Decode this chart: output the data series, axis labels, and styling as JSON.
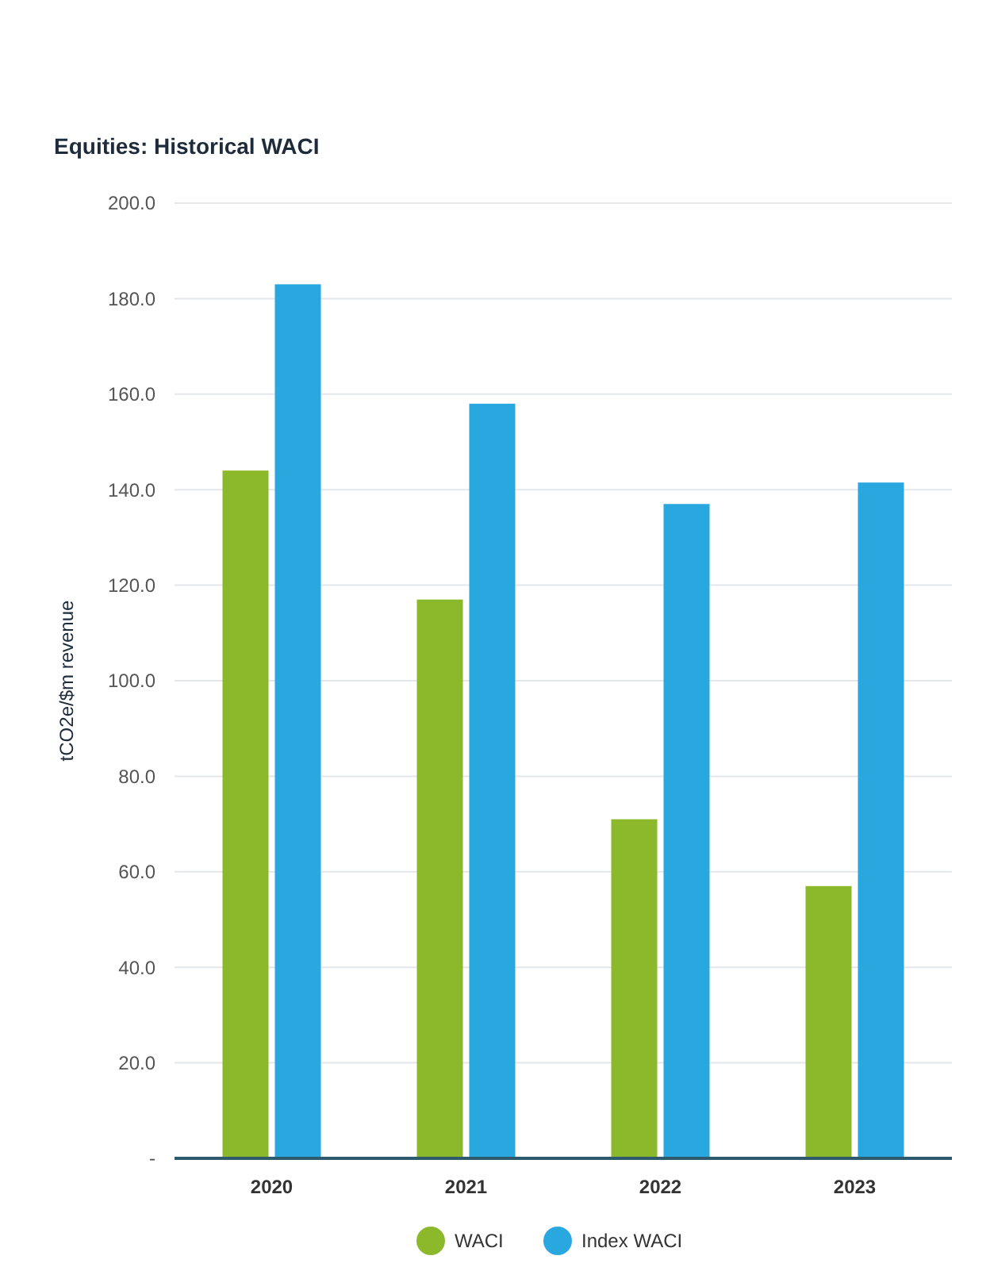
{
  "chart_data": {
    "type": "bar",
    "title": "Equities: Historical WACI",
    "ylabel": "tCO2e/$m revenue",
    "categories": [
      "2020",
      "2021",
      "2022",
      "2023"
    ],
    "series": [
      {
        "name": "WACI",
        "color": "#8cb82b",
        "values": [
          144,
          117,
          71,
          57
        ]
      },
      {
        "name": "Index WACI",
        "color": "#29a8e0",
        "values": [
          183,
          158,
          137,
          141.5
        ]
      }
    ],
    "ylim": [
      0,
      200
    ],
    "yticks": [
      {
        "value": 0,
        "label": "-"
      },
      {
        "value": 20,
        "label": "20.0"
      },
      {
        "value": 40,
        "label": "40.0"
      },
      {
        "value": 60,
        "label": "60.0"
      },
      {
        "value": 80,
        "label": "80.0"
      },
      {
        "value": 100,
        "label": "100.0"
      },
      {
        "value": 120,
        "label": "120.0"
      },
      {
        "value": 140,
        "label": "140.0"
      },
      {
        "value": 160,
        "label": "160.0"
      },
      {
        "value": 180,
        "label": "180.0"
      },
      {
        "value": 200,
        "label": "200.0"
      }
    ],
    "grid": "y",
    "legend": "bottom"
  }
}
